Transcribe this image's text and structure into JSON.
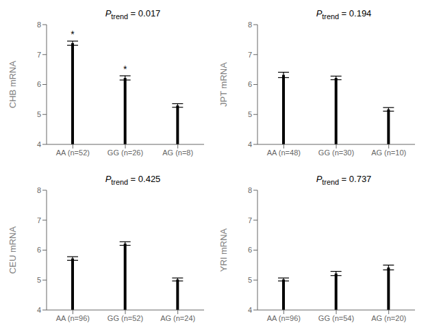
{
  "chart_data": [
    {
      "type": "bar",
      "ylabel": "CHB mRNA",
      "categories": [
        "AA (n=52)",
        "GG (n=26)",
        "AG (n=8)"
      ],
      "values": [
        7.38,
        6.22,
        5.3
      ],
      "errors": [
        0.07,
        0.07,
        0.06
      ],
      "color": "#000000",
      "ylim": [
        4,
        8
      ],
      "yticks": [
        4,
        5,
        6,
        7,
        8
      ],
      "grid": false,
      "annotations": [
        {
          "text": "Ptrend = 0.017"
        },
        {
          "text": "*",
          "category": "AA (n=52)"
        },
        {
          "text": "*",
          "category": "GG (n=26)"
        }
      ]
    },
    {
      "type": "bar",
      "ylabel": "JPT mRNA",
      "categories": [
        "AA (n=48)",
        "GG (n=30)",
        "AG (n=10)"
      ],
      "values": [
        6.32,
        6.22,
        5.17
      ],
      "errors": [
        0.09,
        0.06,
        0.06
      ],
      "color": "#000000",
      "ylim": [
        4,
        8
      ],
      "yticks": [
        4,
        5,
        6,
        7,
        8
      ],
      "grid": false,
      "annotations": [
        {
          "text": "Ptrend = 0.194"
        }
      ]
    },
    {
      "type": "bar",
      "ylabel": "CEU mRNA",
      "categories": [
        "AA (n=96)",
        "GG (n=52)",
        "AG (n=24)"
      ],
      "values": [
        5.72,
        6.22,
        5.02
      ],
      "errors": [
        0.06,
        0.06,
        0.05
      ],
      "color": "#000000",
      "ylim": [
        4,
        8
      ],
      "yticks": [
        4,
        5,
        6,
        7,
        8
      ],
      "grid": false,
      "annotations": [
        {
          "text": "Ptrend = 0.425"
        }
      ]
    },
    {
      "type": "bar",
      "ylabel": "YRI mRNA",
      "categories": [
        "AA (n=96)",
        "GG (n=54)",
        "AG (n=20)"
      ],
      "values": [
        5.02,
        5.22,
        5.42
      ],
      "errors": [
        0.05,
        0.07,
        0.08
      ],
      "color": "#000000",
      "ylim": [
        4,
        8
      ],
      "yticks": [
        4,
        5,
        6,
        7,
        8
      ],
      "grid": false,
      "annotations": [
        {
          "text": "Ptrend = 0.737"
        }
      ]
    }
  ]
}
